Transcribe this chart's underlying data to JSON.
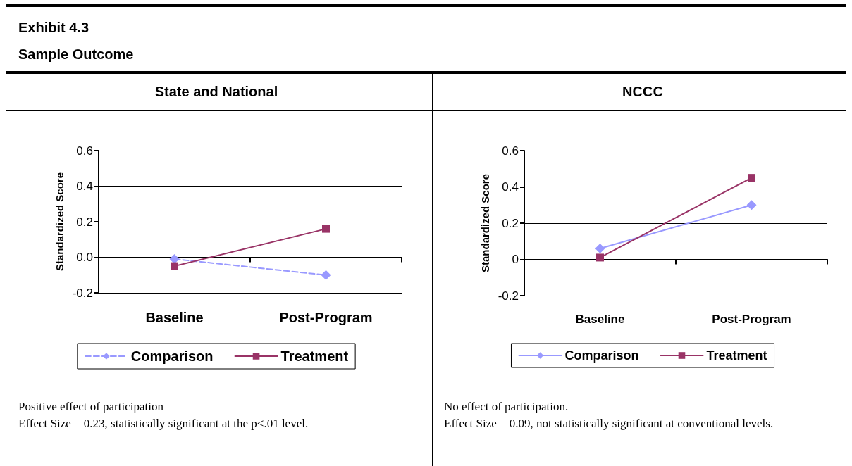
{
  "chart_data": [
    {
      "type": "line",
      "title": "State and National",
      "ylabel": "Standardized Score",
      "categories": [
        "Baseline",
        "Post-Program"
      ],
      "series": [
        {
          "name": "Comparison",
          "color": "#9999ff",
          "values": [
            -0.01,
            -0.1
          ],
          "marker": "diamond",
          "line_style": "dashed"
        },
        {
          "name": "Treatment",
          "color": "#993366",
          "values": [
            -0.05,
            0.16
          ],
          "marker": "square",
          "line_style": "solid"
        }
      ],
      "ylim": [
        -0.2,
        0.6
      ],
      "yticks": [
        {
          "value": -0.2,
          "label": "-0.2"
        },
        {
          "value": 0,
          "label": "0.0"
        },
        {
          "value": 0.2,
          "label": "0.2"
        },
        {
          "value": 0.4,
          "label": "0.4"
        },
        {
          "value": 0.6,
          "label": "0.6"
        }
      ],
      "grid": "y",
      "legend": "bottom",
      "annotations": [
        "Exhibit 4.3",
        "Sample Outcome",
        "Positive effect of participation",
        "Effect Size = 0.23,  statistically significant at the p<.01 level."
      ]
    },
    {
      "type": "line",
      "title": "NCCC",
      "ylabel": "Standardized Score",
      "categories": [
        "Baseline",
        "Post-Program"
      ],
      "series": [
        {
          "name": "Comparison",
          "color": "#9999ff",
          "values": [
            0.06,
            0.3
          ],
          "marker": "diamond",
          "line_style": "solid"
        },
        {
          "name": "Treatment",
          "color": "#993366",
          "values": [
            0.01,
            0.45
          ],
          "marker": "square",
          "line_style": "solid"
        }
      ],
      "ylim": [
        -0.2,
        0.6
      ],
      "yticks": [
        -0.2,
        0,
        0.2,
        0.4,
        0.6
      ],
      "grid": "y",
      "legend": "bottom",
      "annotations": [
        "No effect of participation.",
        "Effect Size = 0.09, not statistically significant at conventional levels."
      ]
    }
  ]
}
